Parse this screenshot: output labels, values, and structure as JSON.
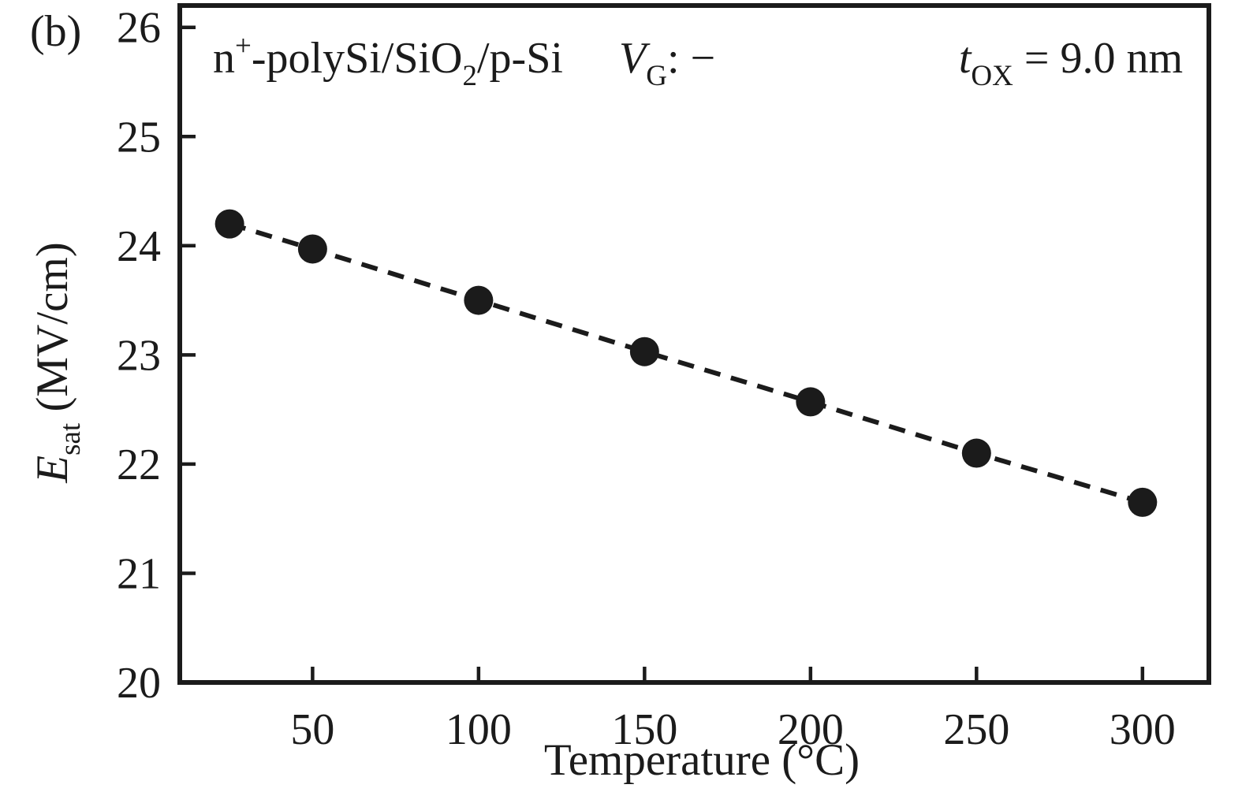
{
  "figure_label": "(b)",
  "colors": {
    "ink": "#1b1b1b",
    "background": "#ffffff",
    "marker": "#1b1b1b"
  },
  "annotations": {
    "structure": {
      "text": "n+-polySi/SiO2/p-Si",
      "parts": [
        {
          "t": "n"
        },
        {
          "t": "+",
          "style": "sup"
        },
        {
          "t": "-polySi/SiO"
        },
        {
          "t": "2",
          "style": "sub"
        },
        {
          "t": "/p-Si"
        }
      ]
    },
    "gate_bias": {
      "text": "VG: −",
      "parts": [
        {
          "t": "V",
          "style": "italic"
        },
        {
          "t": "G",
          "style": "sub"
        },
        {
          "t": ": −"
        }
      ]
    },
    "oxide_thickness": {
      "text": "tOX = 9.0 nm",
      "parts": [
        {
          "t": "t",
          "style": "italic"
        },
        {
          "t": "OX",
          "style": "sub"
        },
        {
          "t": " = 9.0 nm"
        }
      ]
    }
  },
  "chart_data": {
    "type": "scatter",
    "x": [
      25,
      50,
      100,
      150,
      200,
      250,
      300
    ],
    "y": [
      24.2,
      23.97,
      23.5,
      23.03,
      22.57,
      22.1,
      21.65
    ],
    "series_name": "Esat vs temperature",
    "line_style": "dashed",
    "marker": "filled-circle",
    "marker_radius_px": 18.5,
    "xlabel": "Temperature (°C)",
    "ylabel": "Esat (MV/cm)",
    "ylabel_parts": [
      {
        "t": "E",
        "style": "italic"
      },
      {
        "t": "sat",
        "style": "sub"
      },
      {
        "t": " (MV/cm)"
      }
    ],
    "xlim": [
      10,
      320
    ],
    "ylim": [
      20,
      26.2
    ],
    "x_ticks": [
      50,
      100,
      150,
      200,
      250,
      300
    ],
    "y_ticks": [
      26,
      25,
      24,
      23,
      22,
      21,
      20
    ],
    "grid": false,
    "legend": "none"
  }
}
